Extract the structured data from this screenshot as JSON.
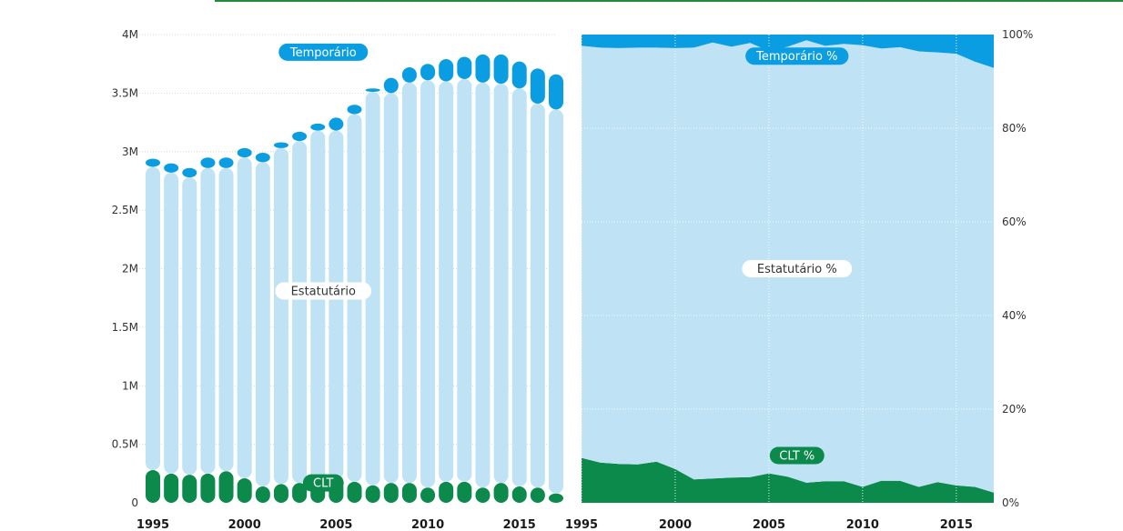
{
  "chart_data": [
    {
      "type": "bar",
      "stacked": true,
      "categories": [
        "1995",
        "1996",
        "1997",
        "1998",
        "1999",
        "2000",
        "2001",
        "2002",
        "2003",
        "2004",
        "2005",
        "2006",
        "2007",
        "2008",
        "2009",
        "2010",
        "2011",
        "2012",
        "2013",
        "2014",
        "2015",
        "2016",
        "2017"
      ],
      "series": [
        {
          "name": "CLT",
          "color": "#0b8a4c",
          "values": [
            0.28,
            0.25,
            0.24,
            0.25,
            0.27,
            0.21,
            0.14,
            0.16,
            0.17,
            0.18,
            0.2,
            0.18,
            0.15,
            0.17,
            0.17,
            0.13,
            0.18,
            0.18,
            0.13,
            0.17,
            0.14,
            0.13,
            0.08
          ]
        },
        {
          "name": "Estatutário",
          "color": "#bfe3f5",
          "values": [
            2.59,
            2.57,
            2.54,
            2.61,
            2.59,
            2.74,
            2.77,
            2.87,
            2.92,
            3.0,
            2.98,
            3.14,
            3.36,
            3.33,
            3.42,
            3.48,
            3.42,
            3.44,
            3.46,
            3.41,
            3.4,
            3.28,
            3.28
          ]
        },
        {
          "name": "Temporário",
          "color": "#0a9de2",
          "values": [
            0.07,
            0.08,
            0.08,
            0.09,
            0.09,
            0.08,
            0.08,
            0.05,
            0.08,
            0.06,
            0.11,
            0.08,
            0.03,
            0.13,
            0.13,
            0.14,
            0.19,
            0.19,
            0.24,
            0.25,
            0.23,
            0.3,
            0.3
          ]
        }
      ],
      "yticks": [
        "0",
        "0.5M",
        "1M",
        "1.5M",
        "2M",
        "2.5M",
        "3M",
        "3.5M",
        "4M"
      ],
      "xticks": [
        "1995",
        "2000",
        "2005",
        "2010",
        "2015"
      ],
      "ylim": [
        0,
        4
      ],
      "grid": true
    },
    {
      "type": "area",
      "stacked": true,
      "x": [
        1995,
        1996,
        1997,
        1998,
        1999,
        2000,
        2001,
        2002,
        2003,
        2004,
        2005,
        2006,
        2007,
        2008,
        2009,
        2010,
        2011,
        2012,
        2013,
        2014,
        2015,
        2016,
        2017
      ],
      "series": [
        {
          "name": "CLT %",
          "color": "#0b8a4c",
          "values": [
            9.6,
            8.6,
            8.3,
            8.2,
            8.8,
            7.2,
            5.0,
            5.2,
            5.4,
            5.5,
            6.3,
            5.6,
            4.3,
            4.6,
            4.6,
            3.4,
            4.7,
            4.7,
            3.4,
            4.4,
            3.7,
            3.4,
            2.2
          ]
        },
        {
          "name": "Estatutário %",
          "color": "#bfe3f5",
          "values": [
            88.0,
            88.6,
            88.8,
            89.0,
            88.4,
            89.9,
            92.2,
            93.1,
            92.0,
            92.7,
            90.2,
            91.8,
            94.5,
            93.0,
            93.4,
            94.3,
            92.3,
            92.6,
            93.0,
            91.8,
            92.2,
            90.8,
            90.7
          ]
        },
        {
          "name": "Temporário %",
          "color": "#0a9de2",
          "values": [
            2.4,
            2.8,
            2.9,
            2.8,
            2.8,
            2.9,
            2.8,
            1.7,
            2.6,
            1.8,
            3.5,
            2.6,
            1.2,
            2.4,
            2.0,
            2.3,
            3.0,
            2.7,
            3.6,
            3.8,
            4.1,
            5.8,
            7.1
          ]
        }
      ],
      "yticks": [
        "0%",
        "20%",
        "40%",
        "60%",
        "80%",
        "100%"
      ],
      "xticks": [
        "1995",
        "2000",
        "2005",
        "2010",
        "2015"
      ],
      "ylim": [
        0,
        100
      ],
      "grid": true
    }
  ]
}
